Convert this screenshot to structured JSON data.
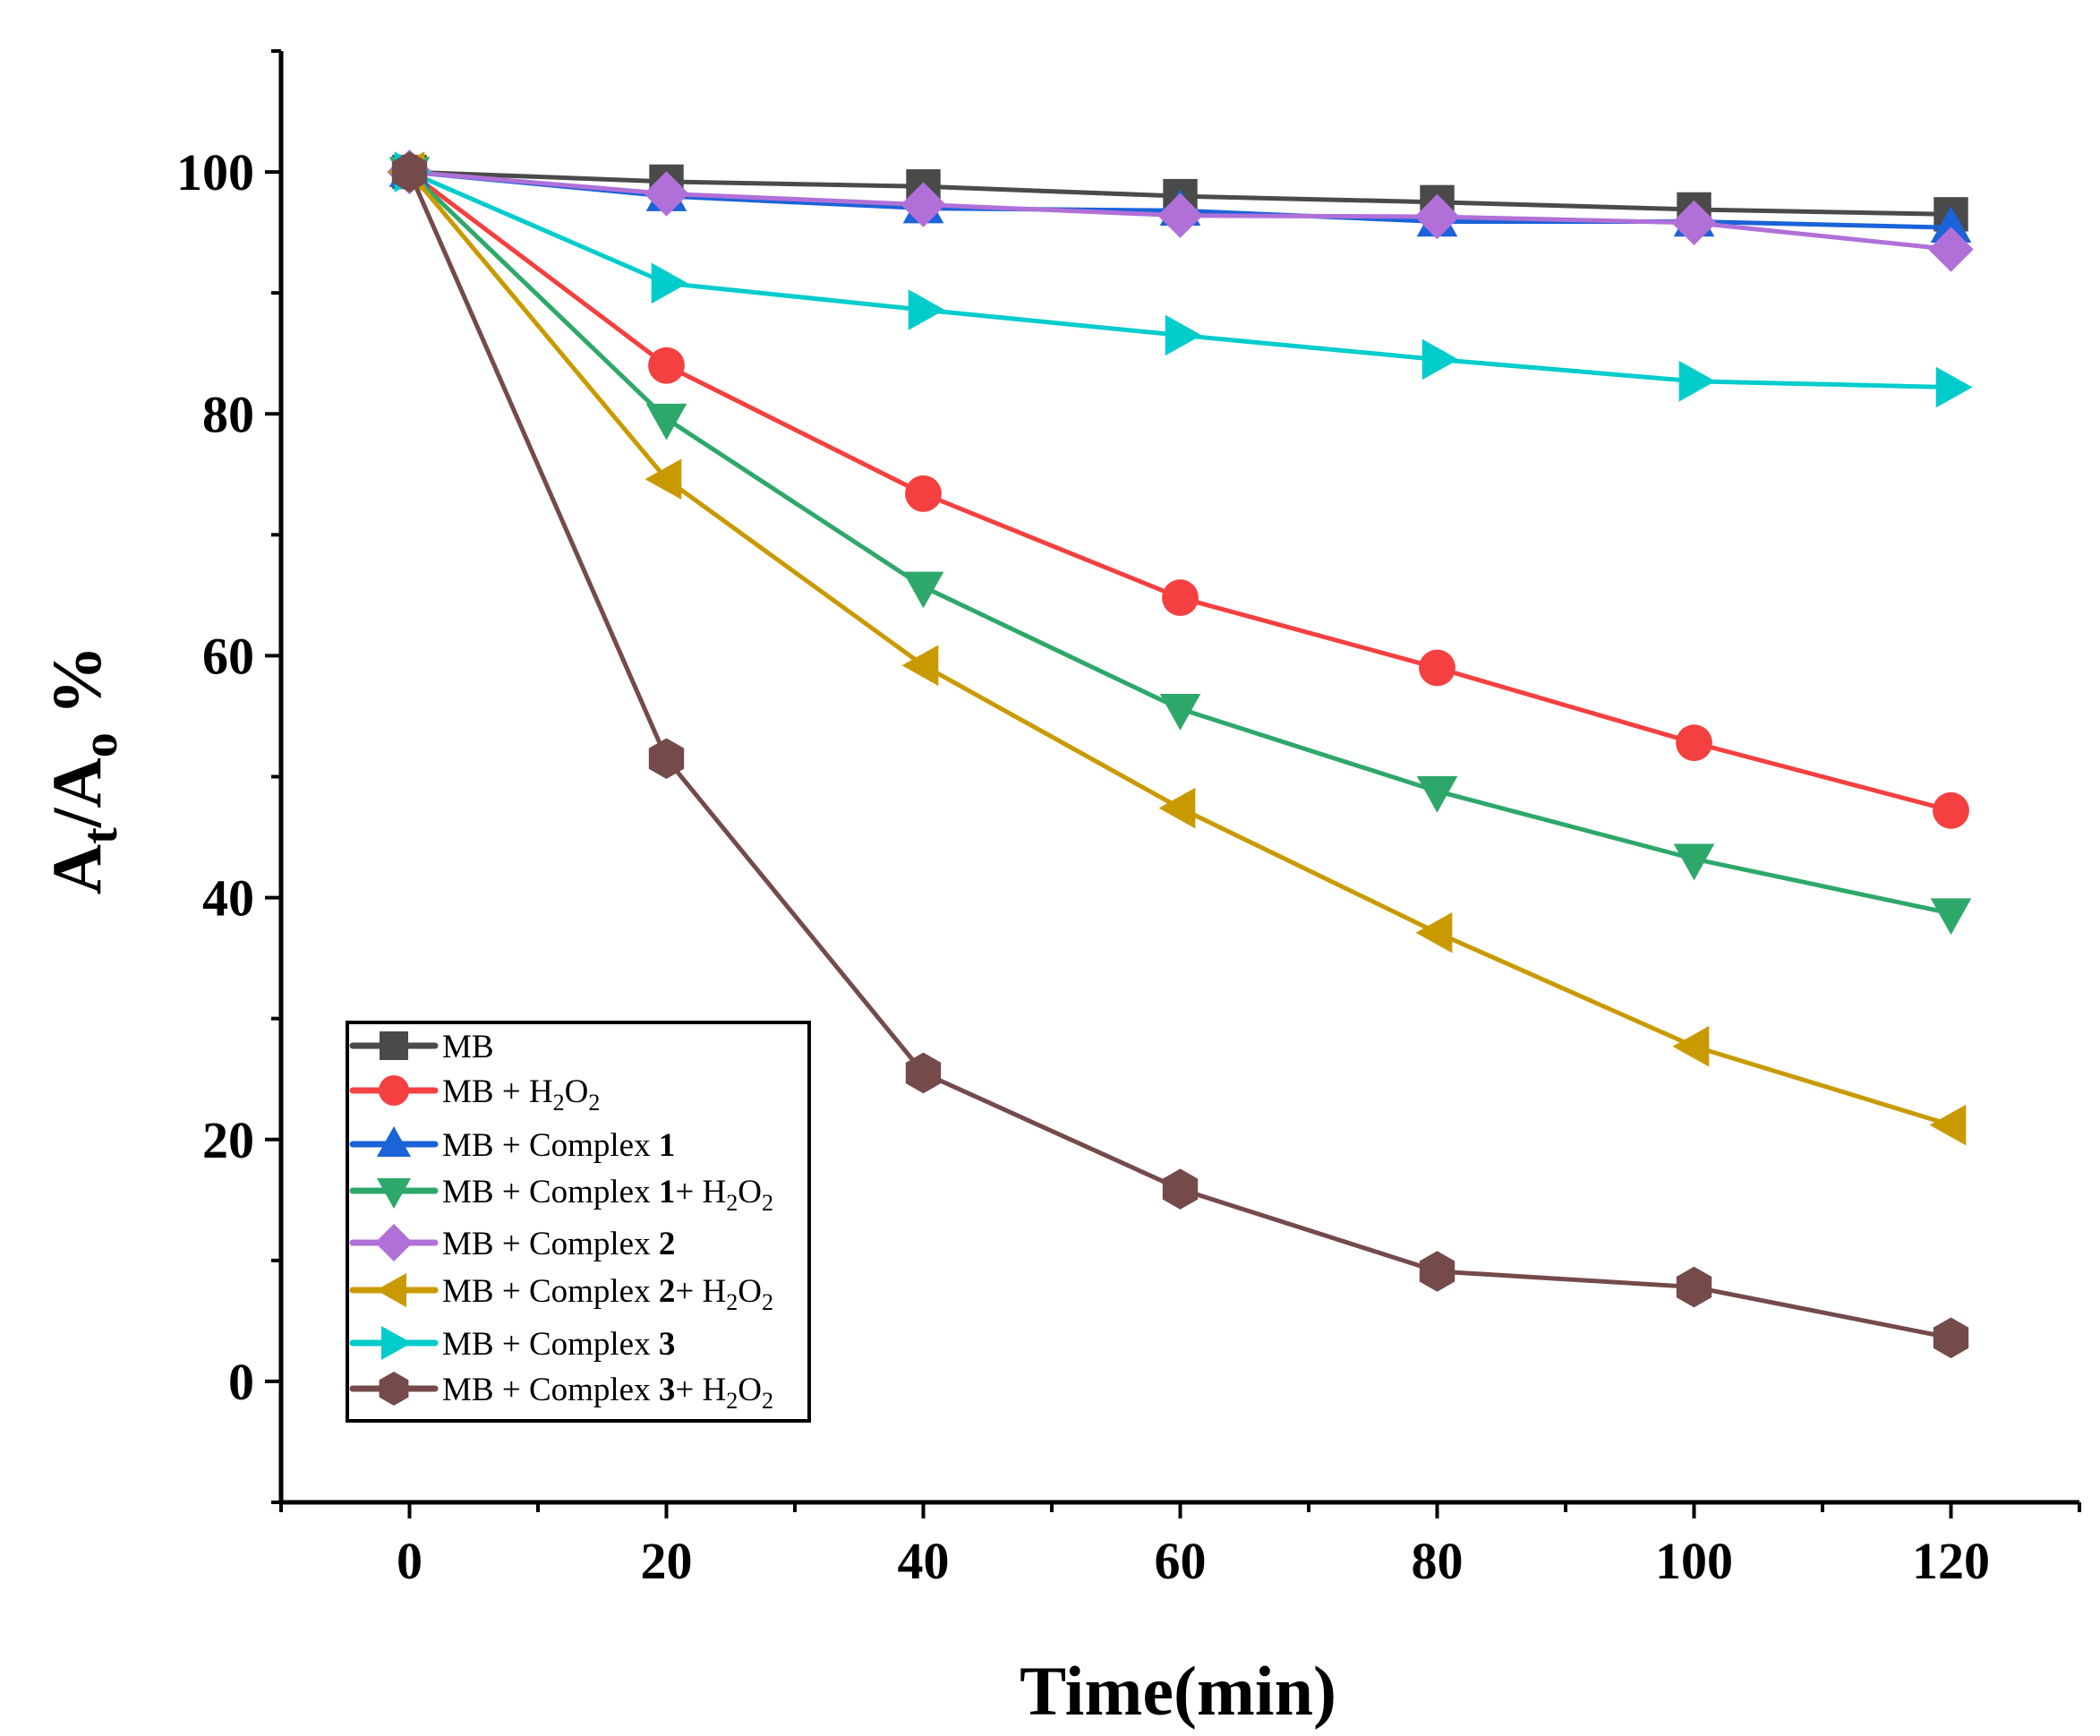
{
  "chart_data": {
    "type": "line",
    "title": "",
    "xlabel": "Time(min)",
    "ylabel": {
      "main": "A",
      "sub1": "t",
      "slash": "/A",
      "sub2": "o",
      "suffix": " %"
    },
    "xlim": [
      -10,
      130
    ],
    "ylim": [
      -10,
      110
    ],
    "xticks": [
      0,
      20,
      40,
      60,
      80,
      100,
      120
    ],
    "yticks": [
      0,
      20,
      40,
      60,
      80,
      100
    ],
    "xtick_labels": [
      "0",
      "20",
      "40",
      "60",
      "80",
      "100",
      "120"
    ],
    "ytick_labels": [
      "0",
      "20",
      "40",
      "60",
      "80",
      "100"
    ],
    "grid": false,
    "legend_placement": "bottom-left",
    "x": [
      0,
      20,
      40,
      60,
      80,
      100,
      120
    ],
    "series": [
      {
        "name": "MB",
        "label_segments": [
          {
            "t": "MB",
            "s": "n"
          }
        ],
        "color": "#4a4a4a",
        "marker": "square",
        "values": [
          100,
          99.2,
          98.8,
          98.0,
          97.5,
          96.9,
          96.5
        ]
      },
      {
        "name": "MB + H2O2",
        "label_segments": [
          {
            "t": "MB + H",
            "s": "n"
          },
          {
            "t": "2",
            "s": "sub"
          },
          {
            "t": "O",
            "s": "n"
          },
          {
            "t": "2",
            "s": "sub"
          }
        ],
        "color": "#f44040",
        "marker": "circle",
        "values": [
          100,
          84.0,
          73.4,
          64.8,
          59.0,
          52.8,
          47.2
        ]
      },
      {
        "name": "MB + Complex 1",
        "label_segments": [
          {
            "t": "MB + Complex ",
            "s": "n"
          },
          {
            "t": "1",
            "s": "b"
          }
        ],
        "color": "#1a63d8",
        "marker": "triangle-up",
        "values": [
          100,
          98.0,
          97.0,
          96.8,
          95.9,
          95.9,
          95.4
        ]
      },
      {
        "name": "MB + Complex 1+ H2O2",
        "label_segments": [
          {
            "t": "MB + Complex ",
            "s": "n"
          },
          {
            "t": "1",
            "s": "b"
          },
          {
            "t": "+ H",
            "s": "n"
          },
          {
            "t": "2",
            "s": "sub"
          },
          {
            "t": "O",
            "s": "n"
          },
          {
            "t": "2",
            "s": "sub"
          }
        ],
        "color": "#2ea86a",
        "marker": "triangle-down",
        "values": [
          100,
          79.6,
          65.7,
          55.6,
          48.8,
          43.2,
          38.7
        ]
      },
      {
        "name": "MB + Complex 2",
        "label_segments": [
          {
            "t": "MB + Complex ",
            "s": "n"
          },
          {
            "t": "2",
            "s": "b"
          }
        ],
        "color": "#b070d8",
        "marker": "diamond",
        "values": [
          100,
          98.2,
          97.3,
          96.4,
          96.3,
          95.8,
          93.6
        ]
      },
      {
        "name": "MB + Complex 2+ H2O2",
        "label_segments": [
          {
            "t": "MB + Complex ",
            "s": "n"
          },
          {
            "t": "2",
            "s": "b"
          },
          {
            "t": "+ H",
            "s": "n"
          },
          {
            "t": "2",
            "s": "sub"
          },
          {
            "t": "O",
            "s": "n"
          },
          {
            "t": "2",
            "s": "sub"
          }
        ],
        "color": "#c99a00",
        "marker": "triangle-left",
        "values": [
          100,
          74.6,
          59.2,
          47.4,
          37.1,
          27.7,
          21.2
        ]
      },
      {
        "name": "MB + Complex 3",
        "label_segments": [
          {
            "t": "MB + Complex ",
            "s": "n"
          },
          {
            "t": "3",
            "s": "b"
          }
        ],
        "color": "#00cccc",
        "marker": "triangle-right",
        "values": [
          100,
          90.8,
          88.6,
          86.5,
          84.5,
          82.7,
          82.2
        ]
      },
      {
        "name": "MB + Complex 3+ H2O2",
        "label_segments": [
          {
            "t": "MB + Complex ",
            "s": "n"
          },
          {
            "t": "3",
            "s": "b"
          },
          {
            "t": "+ H",
            "s": "n"
          },
          {
            "t": "2",
            "s": "sub"
          },
          {
            "t": "O",
            "s": "n"
          },
          {
            "t": "2",
            "s": "sub"
          }
        ],
        "color": "#744a4a",
        "marker": "hexagon",
        "values": [
          100,
          51.5,
          25.5,
          15.9,
          9.1,
          7.8,
          3.6
        ]
      }
    ]
  }
}
